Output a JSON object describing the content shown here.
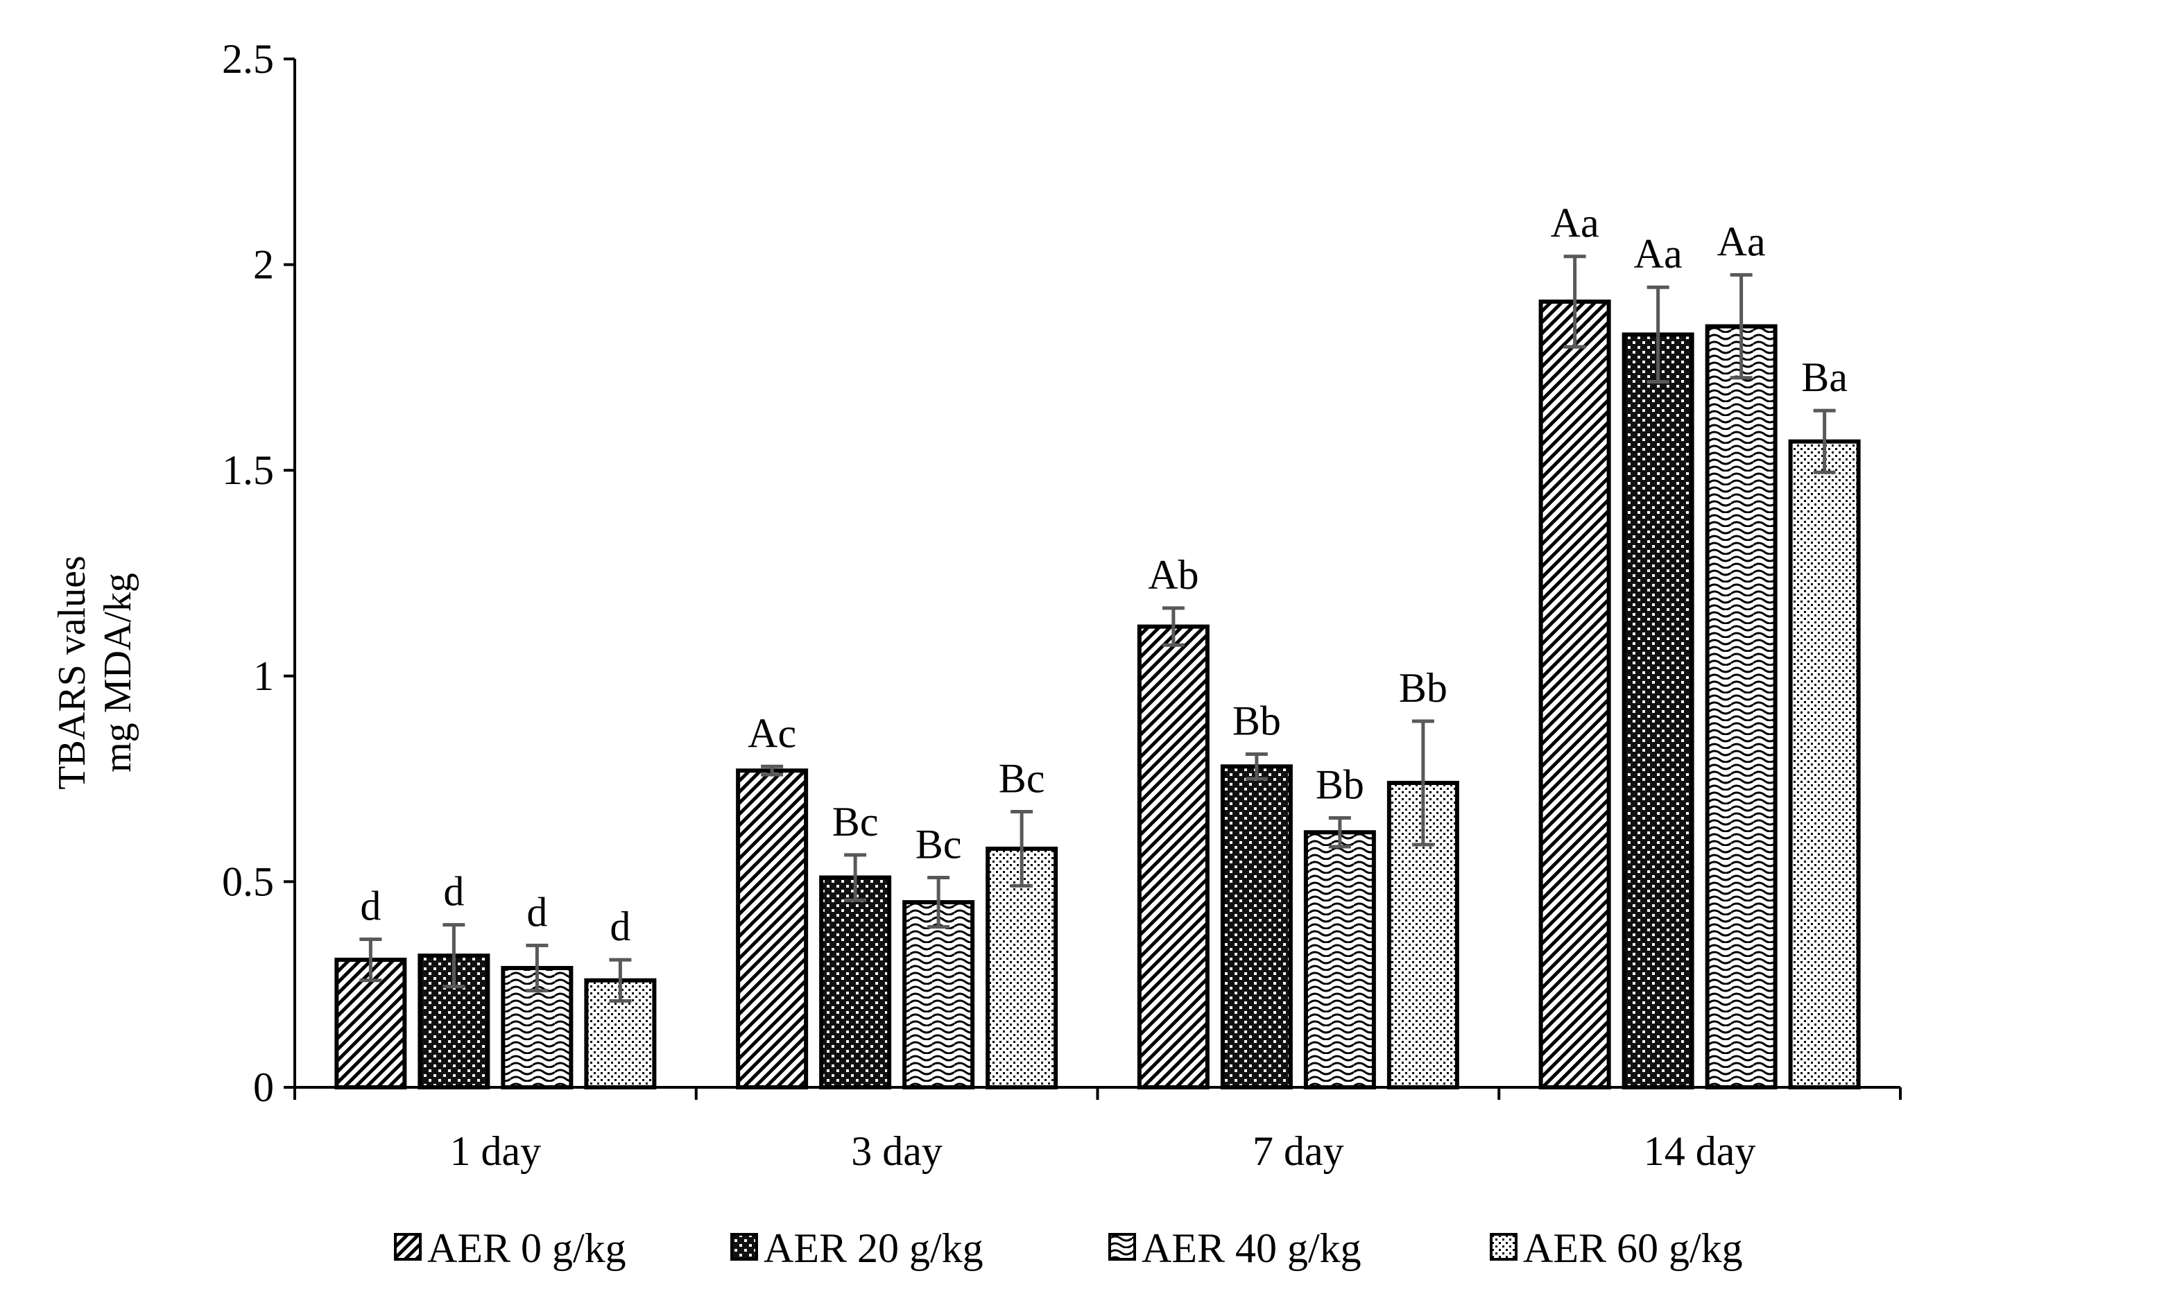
{
  "chart_data": {
    "type": "bar",
    "title": "",
    "xlabel": "",
    "ylabel": [
      "TBARS values",
      "mg MDA/kg"
    ],
    "ylim": [
      0,
      2.5
    ],
    "yticks": [
      0,
      0.5,
      1,
      1.5,
      2,
      2.5
    ],
    "ytick_labels": [
      "0",
      "0.5",
      "1",
      "1.5",
      "2",
      "2.5"
    ],
    "grid": false,
    "legend_position": "bottom",
    "categories": [
      "1 day",
      "3 day",
      "7 day",
      "14 day"
    ],
    "series": [
      {
        "name": "AER 0 g/kg",
        "pattern": "diagonal",
        "values": [
          0.31,
          0.77,
          1.12,
          1.91
        ],
        "errors": [
          0.05,
          0.01,
          0.045,
          0.11
        ],
        "labels": [
          "d",
          "Ac",
          "Ab",
          "Aa"
        ]
      },
      {
        "name": "AER 20 g/kg",
        "pattern": "checker",
        "values": [
          0.32,
          0.51,
          0.78,
          1.83
        ],
        "errors": [
          0.075,
          0.055,
          0.03,
          0.115
        ],
        "labels": [
          "d",
          "Bc",
          "Bb",
          "Aa"
        ]
      },
      {
        "name": "AER 40 g/kg",
        "pattern": "wave",
        "values": [
          0.29,
          0.45,
          0.62,
          1.85
        ],
        "errors": [
          0.055,
          0.06,
          0.035,
          0.125
        ],
        "labels": [
          "d",
          "Bc",
          "Bb",
          "Aa"
        ]
      },
      {
        "name": "AER 60 g/kg",
        "pattern": "dots",
        "values": [
          0.26,
          0.58,
          0.74,
          1.57
        ],
        "errors": [
          0.05,
          0.09,
          0.15,
          0.075
        ],
        "labels": [
          "d",
          "Bc",
          "Bb",
          "Ba"
        ]
      }
    ],
    "colors": {
      "bar_fill": "#ffffff",
      "outline": "#000000",
      "error_bar": "#595959"
    }
  }
}
